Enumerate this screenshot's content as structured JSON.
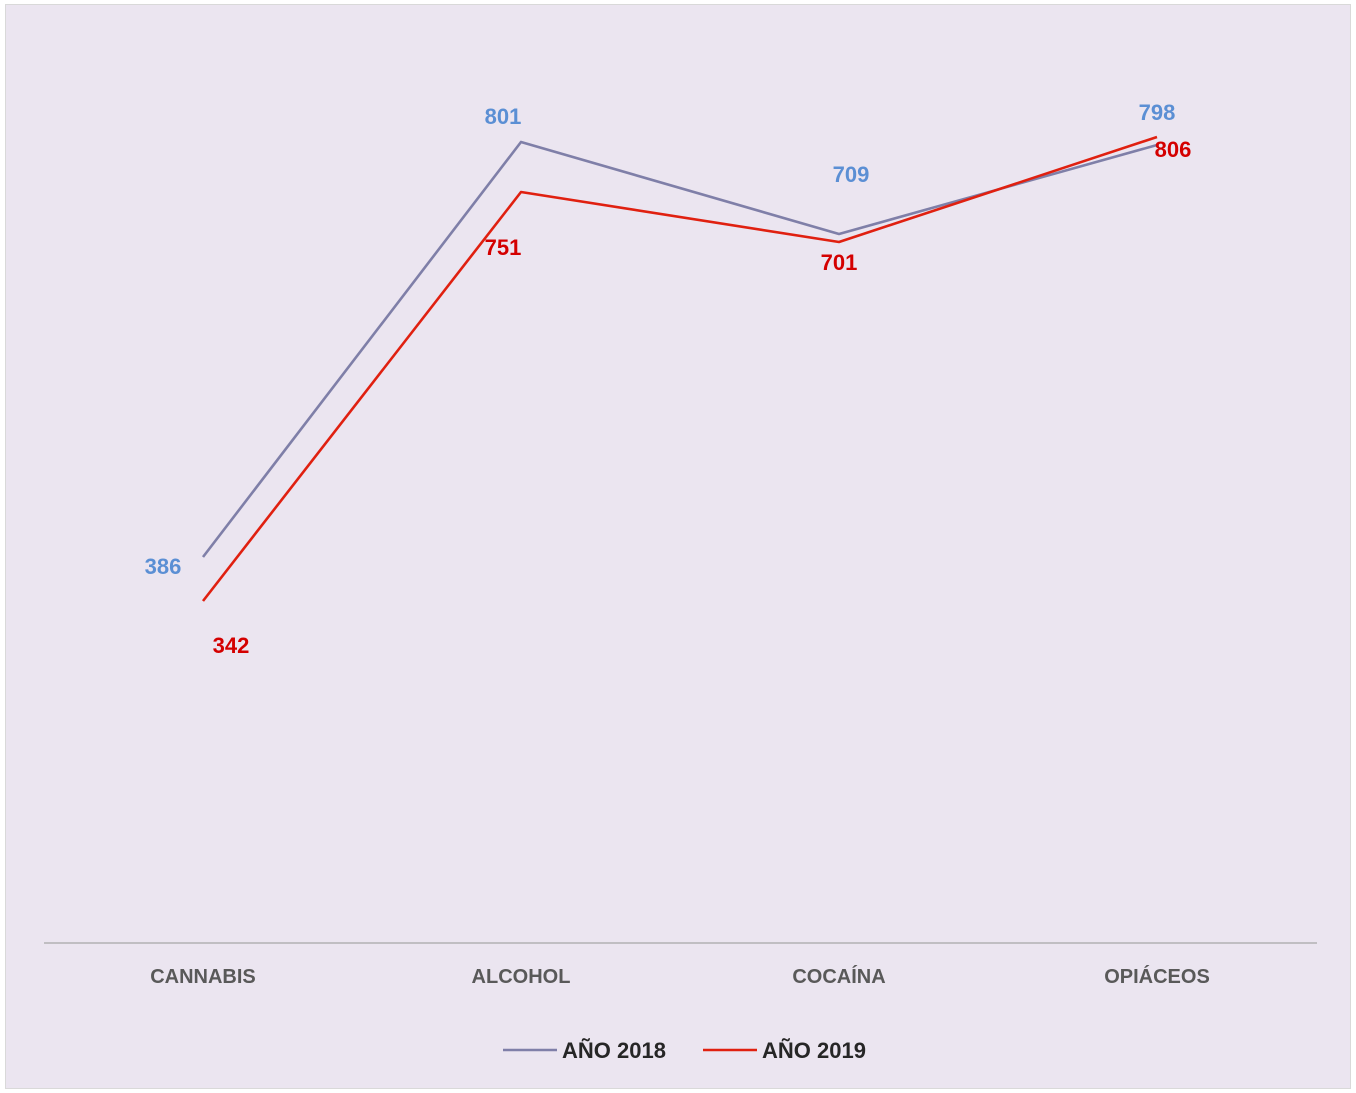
{
  "chart_data": {
    "type": "line",
    "title": "",
    "xlabel": "",
    "ylabel": "",
    "categories": [
      "CANNABIS",
      "ALCOHOL",
      "COCAÍNA",
      "OPIÁCEOS"
    ],
    "ylim": [
      0,
      1000
    ],
    "grid": false,
    "legend_position": "bottom",
    "series": [
      {
        "name": "AÑO 2018",
        "values": [
          386,
          801,
          709,
          798
        ],
        "line_color": "#7f7fa8",
        "label_color": "#5b8fd4",
        "label_weight": "bold"
      },
      {
        "name": "AÑO 2019",
        "values": [
          342,
          751,
          701,
          806
        ],
        "line_color": "#e02010",
        "label_color": "#d40000",
        "label_weight": "bold"
      }
    ]
  }
}
